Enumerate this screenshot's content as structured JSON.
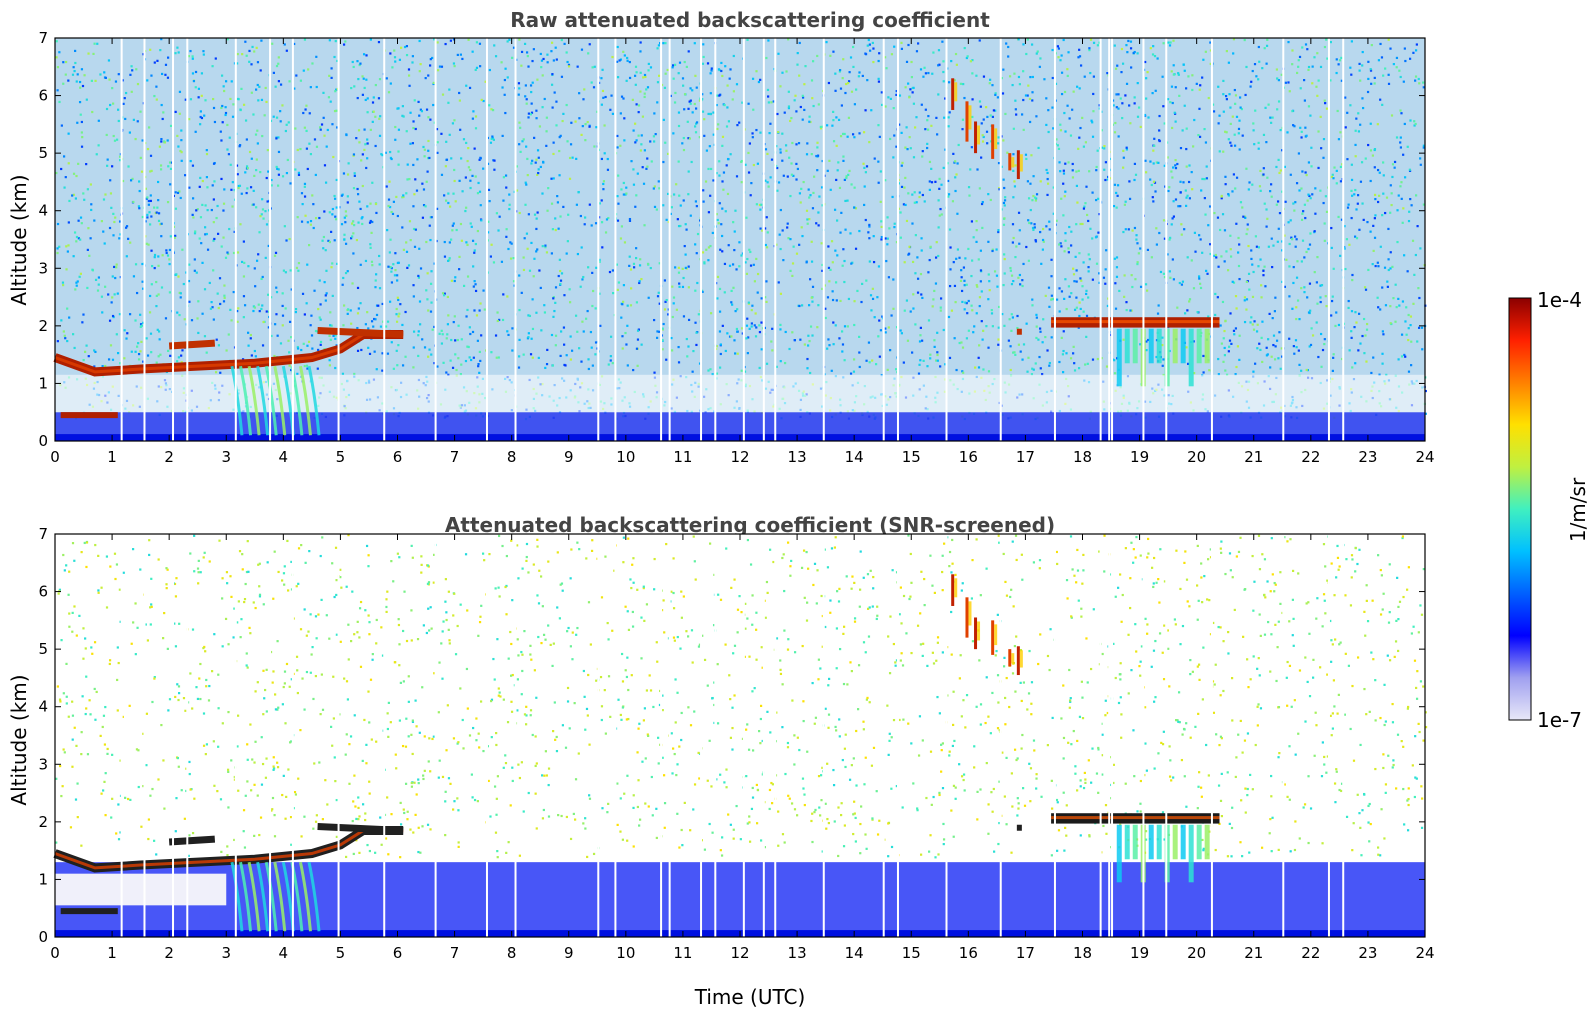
{
  "chart_data": [
    {
      "type": "heatmap",
      "title": "Raw attenuated backscattering coefficient",
      "xlabel": "",
      "ylabel": "Altitude (km)",
      "xlim": [
        0,
        24
      ],
      "ylim": [
        0,
        7
      ],
      "xticks": [
        "0",
        "1",
        "2",
        "3",
        "4",
        "5",
        "6",
        "7",
        "8",
        "9",
        "10",
        "11",
        "12",
        "13",
        "14",
        "15",
        "16",
        "17",
        "18",
        "19",
        "20",
        "21",
        "22",
        "23",
        "24"
      ],
      "yticks": [
        "0",
        "1",
        "2",
        "3",
        "4",
        "5",
        "6",
        "7"
      ],
      "features": [
        {
          "name": "boundary layer aerosol",
          "x": [
            0,
            24
          ],
          "altitude_km": [
            0,
            0.5
          ],
          "level": "1e-6"
        },
        {
          "name": "cloud layer morning",
          "x": [
            0,
            6.1
          ],
          "altitude_km": [
            1.2,
            1.95
          ],
          "level": "1e-4"
        },
        {
          "name": "cloud layer afternoon",
          "x": [
            17.4,
            20.4
          ],
          "altitude_km": [
            1.95,
            2.2
          ],
          "level": "1e-4"
        },
        {
          "name": "high cloud fall streaks",
          "x": [
            15.6,
            16.9
          ],
          "altitude_km": [
            4.6,
            6.3
          ],
          "level": "3e-5"
        }
      ],
      "missing_profiles_utc": [
        1.15,
        1.55,
        2.05,
        2.3,
        3.15,
        3.75,
        4.15,
        4.95,
        5.75,
        6.65,
        7.55,
        8.05,
        9.5,
        9.8,
        10.6,
        10.75,
        11.3,
        11.55,
        12.05,
        12.4,
        12.6,
        13.45,
        14.5,
        14.75,
        15.6,
        16.55,
        17.5,
        18.3,
        18.45,
        18.5,
        19.05,
        19.45,
        20.25,
        21.5,
        22.3,
        22.55
      ]
    },
    {
      "type": "heatmap",
      "title": "Attenuated backscattering coefficient (SNR-screened)",
      "xlabel": "Time (UTC)",
      "ylabel": "Altitude (km)",
      "xlim": [
        0,
        24
      ],
      "ylim": [
        0,
        7
      ],
      "xticks": [
        "0",
        "1",
        "2",
        "3",
        "4",
        "5",
        "6",
        "7",
        "8",
        "9",
        "10",
        "11",
        "12",
        "13",
        "14",
        "15",
        "16",
        "17",
        "18",
        "19",
        "20",
        "21",
        "22",
        "23",
        "24"
      ],
      "yticks": [
        "0",
        "1",
        "2",
        "3",
        "4",
        "5",
        "6",
        "7"
      ],
      "features": [
        {
          "name": "boundary layer aerosol",
          "x": [
            0,
            24
          ],
          "altitude_km": [
            0,
            1.3
          ],
          "level": "1e-6"
        },
        {
          "name": "cloud layer morning",
          "x": [
            0,
            6.1
          ],
          "altitude_km": [
            1.2,
            1.95
          ],
          "level": "1e-4"
        },
        {
          "name": "cloud layer afternoon",
          "x": [
            17.4,
            20.4
          ],
          "altitude_km": [
            1.95,
            2.2
          ],
          "level": "1e-4"
        },
        {
          "name": "high cloud fall streaks",
          "x": [
            15.6,
            16.9
          ],
          "altitude_km": [
            4.6,
            6.3
          ],
          "level": "3e-5"
        }
      ]
    }
  ],
  "colorbar": {
    "label": "1/m/sr",
    "min_label": "1e-7",
    "max_label": "1e-4",
    "colors": [
      "#e8e8f8",
      "#a0a0f0",
      "#0000ff",
      "#0060ff",
      "#00c0ff",
      "#40f0c0",
      "#c0f040",
      "#ffe000",
      "#ff8000",
      "#ff2000",
      "#8b0000"
    ]
  }
}
